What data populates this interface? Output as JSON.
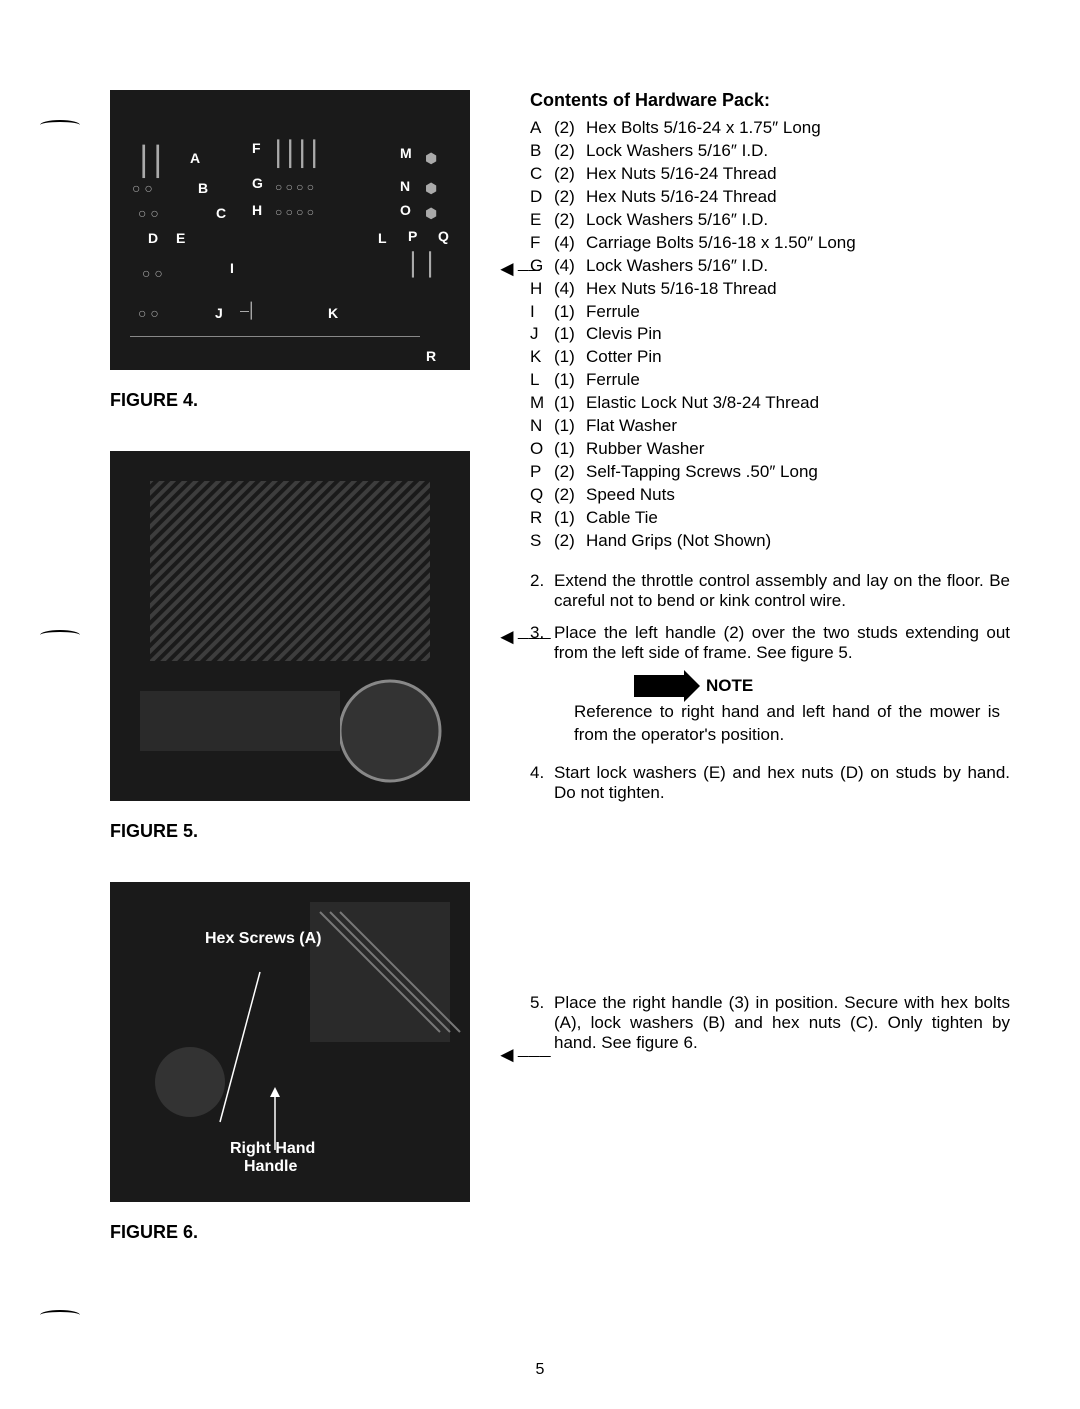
{
  "figures": {
    "fig4_label": "FIGURE 4.",
    "fig5_label": "FIGURE 5.",
    "fig6_label": "FIGURE 6.",
    "fig4_letters": [
      "A",
      "B",
      "C",
      "D",
      "E",
      "F",
      "G",
      "H",
      "I",
      "J",
      "K",
      "L",
      "M",
      "N",
      "O",
      "P",
      "Q",
      "R"
    ],
    "fig6_text1": "Hex Screws (A)",
    "fig6_text2": "Right Hand",
    "fig6_text3": "Handle"
  },
  "hardware": {
    "title": "Contents of Hardware Pack:",
    "items": [
      {
        "k": "A",
        "q": "(2)",
        "d": "Hex Bolts 5/16-24 x 1.75″ Long"
      },
      {
        "k": "B",
        "q": "(2)",
        "d": "Lock Washers 5/16″ I.D."
      },
      {
        "k": "C",
        "q": "(2)",
        "d": "Hex Nuts 5/16-24 Thread"
      },
      {
        "k": "D",
        "q": "(2)",
        "d": "Hex Nuts 5/16-24 Thread"
      },
      {
        "k": "E",
        "q": "(2)",
        "d": "Lock Washers 5/16″ I.D."
      },
      {
        "k": "F",
        "q": "(4)",
        "d": "Carriage Bolts 5/16-18 x 1.50″ Long"
      },
      {
        "k": "G",
        "q": "(4)",
        "d": "Lock Washers 5/16″ I.D."
      },
      {
        "k": "H",
        "q": "(4)",
        "d": "Hex Nuts 5/16-18 Thread"
      },
      {
        "k": "I",
        "q": "(1)",
        "d": "Ferrule"
      },
      {
        "k": "J",
        "q": "(1)",
        "d": "Clevis Pin"
      },
      {
        "k": "K",
        "q": "(1)",
        "d": "Cotter Pin"
      },
      {
        "k": "L",
        "q": "(1)",
        "d": "Ferrule"
      },
      {
        "k": "M",
        "q": "(1)",
        "d": "Elastic Lock Nut 3/8-24 Thread"
      },
      {
        "k": "N",
        "q": "(1)",
        "d": "Flat Washer"
      },
      {
        "k": "O",
        "q": "(1)",
        "d": "Rubber Washer"
      },
      {
        "k": "P",
        "q": "(2)",
        "d": "Self-Tapping Screws .50″ Long"
      },
      {
        "k": "Q",
        "q": "(2)",
        "d": "Speed Nuts"
      },
      {
        "k": "R",
        "q": "(1)",
        "d": "Cable Tie"
      },
      {
        "k": "S",
        "q": "(2)",
        "d": "Hand Grips (Not Shown)"
      }
    ]
  },
  "steps": {
    "s2": {
      "n": "2.",
      "t": "Extend the throttle control assembly and lay on the floor. Be careful not to bend or kink control wire."
    },
    "s3": {
      "n": "3.",
      "t": "Place the left handle (2) over the two studs extending out from the left side of frame. See figure 5."
    },
    "note_label": "NOTE",
    "note_text": "Reference to right hand and left hand of the mower is from the operator's position.",
    "s4": {
      "n": "4.",
      "t": "Start lock washers (E) and hex nuts (D) on studs by hand. Do not tighten."
    },
    "s5": {
      "n": "5.",
      "t": "Place the right handle (3) in position. Secure with hex bolts (A), lock washers (B) and hex nuts (C). Only tighten by hand. See figure 6."
    }
  },
  "page_number": "5"
}
